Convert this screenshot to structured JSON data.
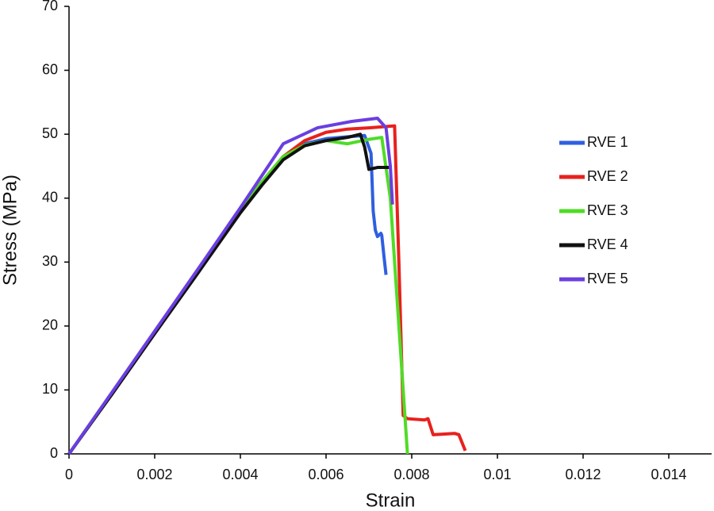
{
  "chart_data": {
    "type": "line",
    "x_label": "Strain",
    "y_label": "Stress (MPa)",
    "xlim": [
      0,
      0.015
    ],
    "xticks": [
      0,
      0.002,
      0.004,
      0.006,
      0.008,
      0.01,
      0.012,
      0.014
    ],
    "ylim": [
      0,
      70
    ],
    "yticks": [
      0,
      10,
      20,
      30,
      40,
      50,
      60,
      70
    ],
    "legend": "right",
    "series": [
      {
        "name": "RVE 1",
        "color": "#2f5fe0",
        "x": [
          0,
          0.001,
          0.002,
          0.003,
          0.004,
          0.0045,
          0.005,
          0.0055,
          0.006,
          0.0065,
          0.0069,
          0.00705,
          0.0071,
          0.00715,
          0.0072,
          0.00728,
          0.0073,
          0.00735,
          0.0074
        ],
        "values": [
          0,
          9.5,
          19,
          28.5,
          38,
          42.5,
          46.5,
          48.5,
          49.3,
          49.6,
          49.8,
          47,
          38,
          35,
          34,
          34.5,
          34.2,
          31,
          28
        ]
      },
      {
        "name": "RVE 2",
        "color": "#e8211d",
        "x": [
          0,
          0.001,
          0.002,
          0.003,
          0.004,
          0.0045,
          0.005,
          0.0055,
          0.006,
          0.0065,
          0.007,
          0.0076,
          0.0077,
          0.0078,
          0.0079,
          0.0083,
          0.00838,
          0.0085,
          0.009,
          0.0091,
          0.00925
        ],
        "values": [
          0,
          9.5,
          19,
          28.5,
          38,
          42.5,
          46.5,
          49,
          50.3,
          50.8,
          51,
          51.3,
          30,
          6,
          5.5,
          5.3,
          5.5,
          3,
          3.2,
          3,
          0.5
        ]
      },
      {
        "name": "RVE 3",
        "color": "#4fdc26",
        "x": [
          0,
          0.001,
          0.002,
          0.003,
          0.004,
          0.0045,
          0.005,
          0.0055,
          0.006,
          0.0065,
          0.007,
          0.0073,
          0.0075,
          0.0076,
          0.0077,
          0.0078,
          0.0079
        ],
        "values": [
          0,
          9.5,
          19,
          28.5,
          38,
          42.5,
          46.5,
          48.3,
          49,
          48.5,
          49.2,
          49.5,
          40,
          30,
          20,
          10,
          0
        ]
      },
      {
        "name": "RVE 4",
        "color": "#111111",
        "x": [
          0,
          0.001,
          0.002,
          0.003,
          0.004,
          0.0045,
          0.005,
          0.0055,
          0.006,
          0.0065,
          0.0068,
          0.0069,
          0.007,
          0.0072,
          0.0075
        ],
        "values": [
          0,
          9.3,
          18.8,
          28.2,
          37.7,
          42,
          46,
          48.2,
          49,
          49.5,
          50,
          48,
          44.5,
          44.8,
          44.8
        ]
      },
      {
        "name": "RVE 5",
        "color": "#6a3fe0",
        "x": [
          0,
          0.001,
          0.002,
          0.003,
          0.004,
          0.0045,
          0.005,
          0.0058,
          0.0066,
          0.0072,
          0.0074,
          0.0075,
          0.00755
        ],
        "values": [
          0,
          9.6,
          19.2,
          28.8,
          38.5,
          43.5,
          48.5,
          51,
          52,
          52.5,
          51,
          45,
          39
        ]
      }
    ]
  }
}
